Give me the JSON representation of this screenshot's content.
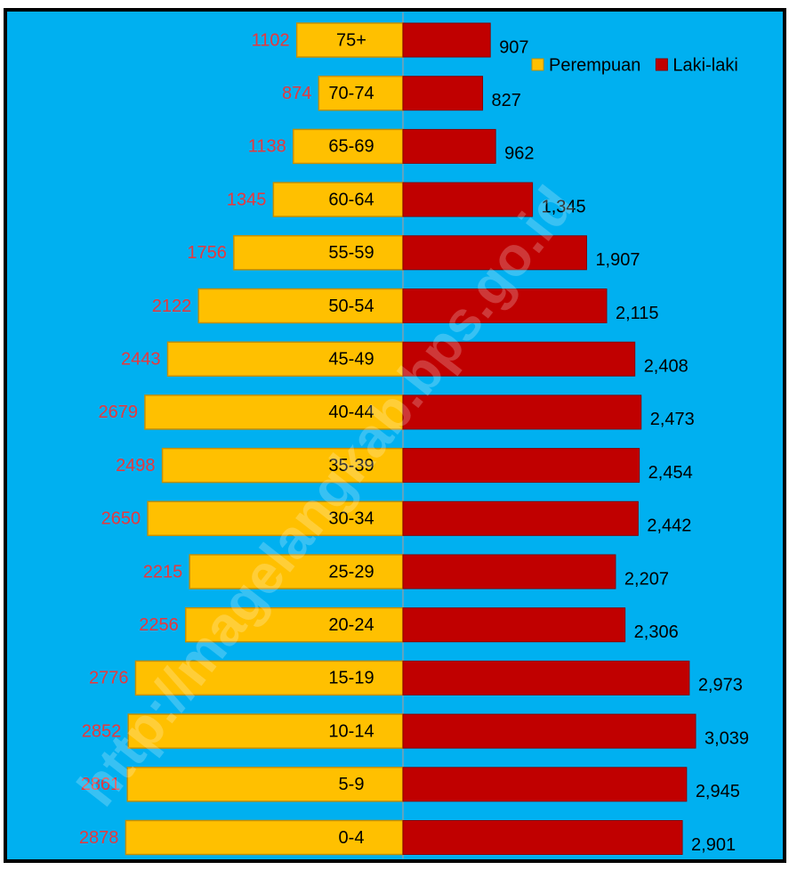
{
  "chart_data": {
    "type": "pyramid",
    "watermark": "http://magelangkab.bps.go.id",
    "categories": [
      "75+",
      "70-74",
      "65-69",
      "60-64",
      "55-59",
      "50-54",
      "45-49",
      "40-44",
      "35-39",
      "30-34",
      "25-29",
      "20-24",
      "15-19",
      "10-14",
      "5-9",
      "0-4"
    ],
    "series": [
      {
        "name": "Perempuan",
        "color": "#ffc000",
        "label_color": "#e8383d",
        "values": [
          1102,
          874,
          1138,
          1345,
          1756,
          2122,
          2443,
          2679,
          2498,
          2650,
          2215,
          2256,
          2776,
          2852,
          2861,
          2878
        ]
      },
      {
        "name": "Laki-laki",
        "color": "#c00000",
        "label_color": "#000000",
        "values": [
          907,
          827,
          962,
          1345,
          1907,
          2115,
          2408,
          2473,
          2454,
          2442,
          2207,
          2306,
          2973,
          3039,
          2945,
          2901
        ],
        "value_labels": [
          "907",
          "827",
          "962",
          "1,345",
          "1,907",
          "2,115",
          "2,408",
          "2,473",
          "2,454",
          "2,442",
          "2,207",
          "2,306",
          "2,973",
          "3,039",
          "2,945",
          "2,901"
        ]
      }
    ],
    "legend": "upper right"
  }
}
